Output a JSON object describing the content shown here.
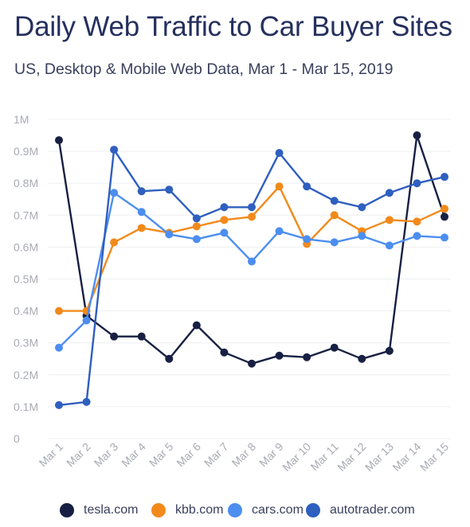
{
  "title": "Daily Web Traffic to Car Buyer Sites",
  "subtitle": "US, Desktop & Mobile Web Data, Mar 1 - Mar 15, 2019",
  "chart_data": {
    "type": "line",
    "categories": [
      "Mar 1",
      "Mar 2",
      "Mar 3",
      "Mar 4",
      "Mar 5",
      "Mar 6",
      "Mar 7",
      "Mar 8",
      "Mar 9",
      "Mar 10",
      "Mar 11",
      "Mar 12",
      "Mar 13",
      "Mar 14",
      "Mar 15"
    ],
    "ylim": [
      0,
      1000000
    ],
    "yticks": [
      0,
      100000,
      200000,
      300000,
      400000,
      500000,
      600000,
      700000,
      800000,
      900000,
      1000000
    ],
    "ytick_labels": [
      "0",
      "0.1M",
      "0.2M",
      "0.3M",
      "0.4M",
      "0.5M",
      "0.6M",
      "0.7M",
      "0.8M",
      "0.9M",
      "1M"
    ],
    "grid": true,
    "legend_position": "bottom",
    "series": [
      {
        "name": "tesla.com",
        "color": "#172043",
        "values": [
          935000,
          385000,
          320000,
          320000,
          250000,
          355000,
          270000,
          235000,
          260000,
          255000,
          285000,
          250000,
          275000,
          950000,
          695000
        ]
      },
      {
        "name": "kbb.com",
        "color": "#f28a1b",
        "values": [
          400000,
          400000,
          615000,
          660000,
          645000,
          665000,
          685000,
          695000,
          790000,
          610000,
          700000,
          650000,
          685000,
          680000,
          720000
        ]
      },
      {
        "name": "cars.com",
        "color": "#4c8ef0",
        "values": [
          285000,
          370000,
          770000,
          710000,
          640000,
          625000,
          645000,
          555000,
          650000,
          625000,
          615000,
          635000,
          605000,
          635000,
          630000
        ]
      },
      {
        "name": "autotrader.com",
        "color": "#2f5fbf",
        "values": [
          105000,
          115000,
          905000,
          775000,
          780000,
          690000,
          725000,
          725000,
          895000,
          790000,
          745000,
          725000,
          770000,
          800000,
          820000
        ]
      }
    ]
  }
}
